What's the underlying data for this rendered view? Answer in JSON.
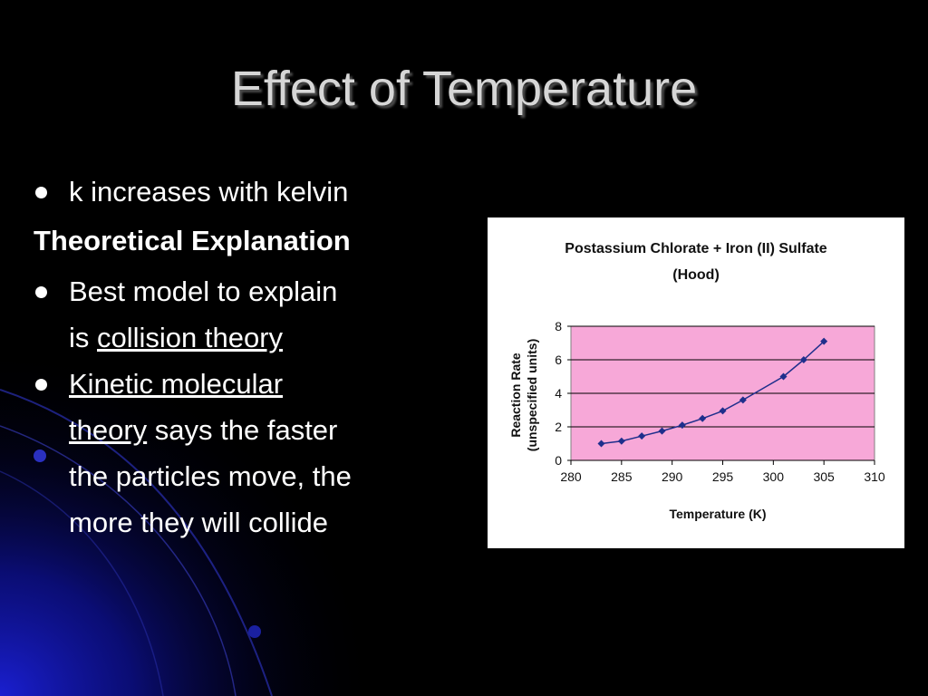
{
  "slide": {
    "title": "Effect of Temperature",
    "bullet1": "k increases with kelvin",
    "heading": "Theoretical Explanation",
    "bullet2_pre": "Best model to explain",
    "bullet2_mid": "is ",
    "bullet2_link": "collision theory",
    "bullet3_link1": "Kinetic molecular",
    "bullet3_link2": "theory",
    "bullet3_rest1": " says the faster",
    "bullet3_rest2": "the particles move, the",
    "bullet3_rest3": "more they will collide"
  },
  "colors": {
    "background": "#000000",
    "title": "#d6d6d6",
    "text": "#ffffff",
    "plot_area": "#f7a8d8",
    "series": "#1f2f8c"
  },
  "chart_data": {
    "type": "line",
    "title": "Postassium Chlorate + Iron (II) Sulfate",
    "subtitle": "(Hood)",
    "xlabel": "Temperature (K)",
    "ylabel": "Reaction Rate",
    "ylabel2": "(unspecified units)",
    "xlim": [
      280,
      310
    ],
    "ylim": [
      0,
      8
    ],
    "x_ticks": [
      "280",
      "285",
      "290",
      "295",
      "300",
      "305",
      "310"
    ],
    "y_ticks": [
      "0",
      "2",
      "4",
      "6",
      "8"
    ],
    "grid": "horizontal",
    "x": [
      283,
      285,
      287,
      289,
      291,
      293,
      295,
      297,
      301,
      303,
      305
    ],
    "values": [
      1.0,
      1.15,
      1.45,
      1.75,
      2.1,
      2.5,
      2.95,
      3.6,
      5.0,
      6.0,
      7.1
    ]
  }
}
